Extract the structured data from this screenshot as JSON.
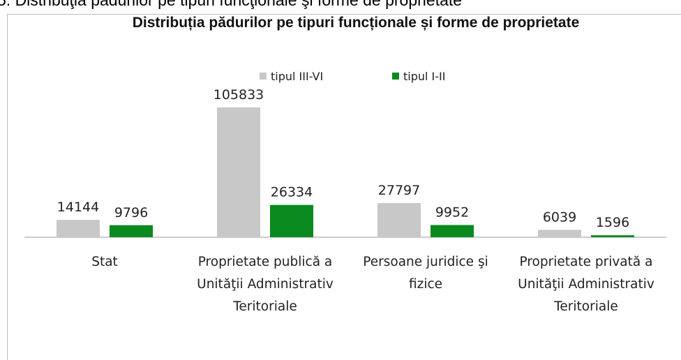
{
  "heading": "5. Distribuţia pădurilor pe tipuri funcţionale şi forme de proprietate",
  "chart_data": {
    "type": "bar",
    "title": "Distribuția pădurilor pe tipuri funcționale și forme de proprietate",
    "categories": [
      "Stat",
      "Proprietate publică a Unităţii Administrativ Teritoriale",
      "Persoane juridice şi fizice",
      "Proprietate privată a Unităţii Administrativ Teritoriale"
    ],
    "series": [
      {
        "name": "tipul III-VI",
        "color": "#c8c8c8",
        "values": [
          14144,
          105833,
          27797,
          6039
        ]
      },
      {
        "name": "tipul I-II",
        "color": "#0a8a1e",
        "values": [
          9796,
          26334,
          9952,
          1596
        ]
      }
    ],
    "legend": "top"
  }
}
